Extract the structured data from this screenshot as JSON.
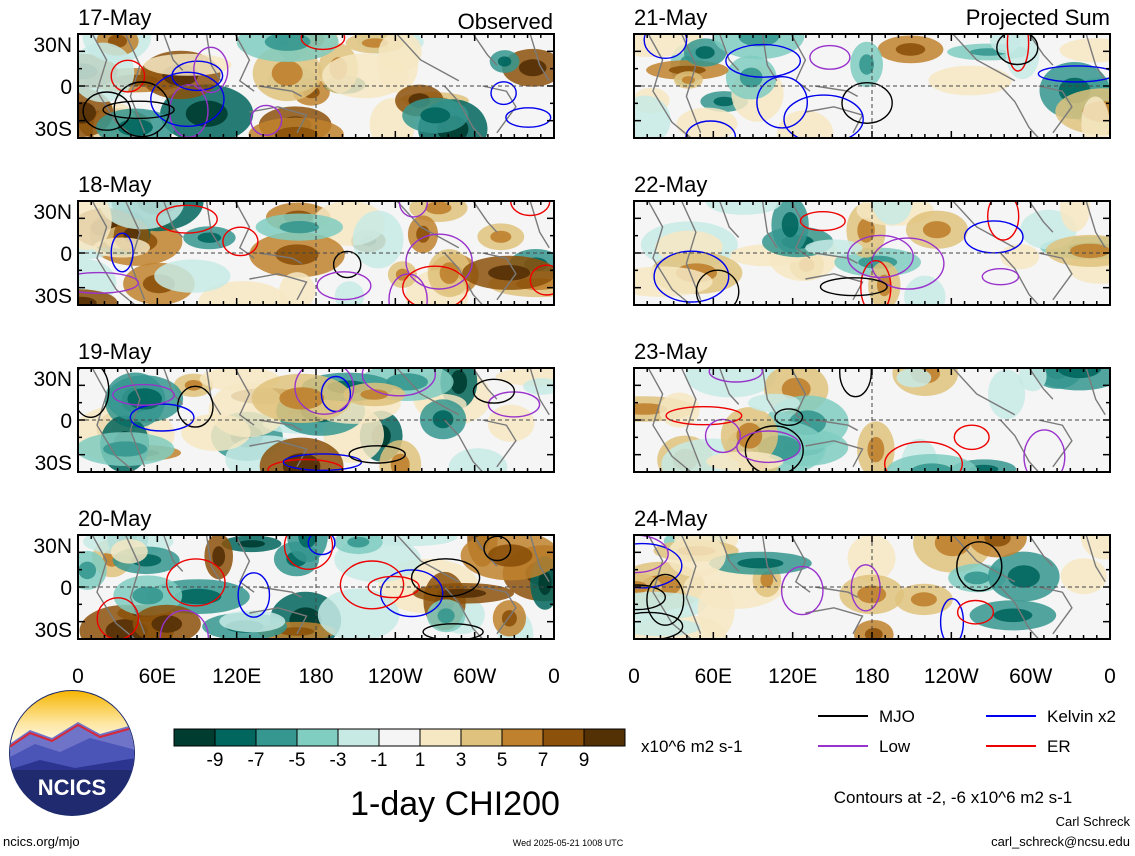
{
  "chart_data": {
    "type": "heatmap",
    "variable": "1-day CHI200",
    "units": "x10^6 m2 s-1",
    "contour_note": "Contours at -2, -6 x10^6 m2 s-1",
    "columns": [
      {
        "heading": "Observed",
        "panels": [
          "17-May",
          "18-May",
          "19-May",
          "20-May"
        ]
      },
      {
        "heading": "Projected Sum",
        "panels": [
          "21-May",
          "22-May",
          "23-May",
          "24-May"
        ]
      }
    ],
    "lat_labels": [
      "30N",
      "0",
      "30S"
    ],
    "lon_labels": [
      "0",
      "60E",
      "120E",
      "180",
      "120W",
      "60W",
      "0"
    ],
    "colorbar": {
      "ticks": [
        "-9",
        "-7",
        "-5",
        "-3",
        "-1",
        "1",
        "3",
        "5",
        "7",
        "9"
      ],
      "colors": [
        "#003c30",
        "#01665e",
        "#35978f",
        "#80cdc1",
        "#c7eae5",
        "#f5f5f5",
        "#f6e8c3",
        "#dfc27d",
        "#bf812d",
        "#8c510a",
        "#543005"
      ]
    },
    "contour_legend": [
      {
        "name": "MJO",
        "color": "#000000"
      },
      {
        "name": "Kelvin x2",
        "color": "#0000ee"
      },
      {
        "name": "Low",
        "color": "#9933cc"
      },
      {
        "name": "ER",
        "color": "#ee0000"
      }
    ]
  },
  "branding": {
    "logo_text": "NCICS"
  },
  "footer": {
    "left": "ncics.org/mjo",
    "timestamp": "Wed 2025-05-21 1008 UTC",
    "author": "Carl Schreck",
    "email": "carl_schreck@ncsu.edu"
  }
}
